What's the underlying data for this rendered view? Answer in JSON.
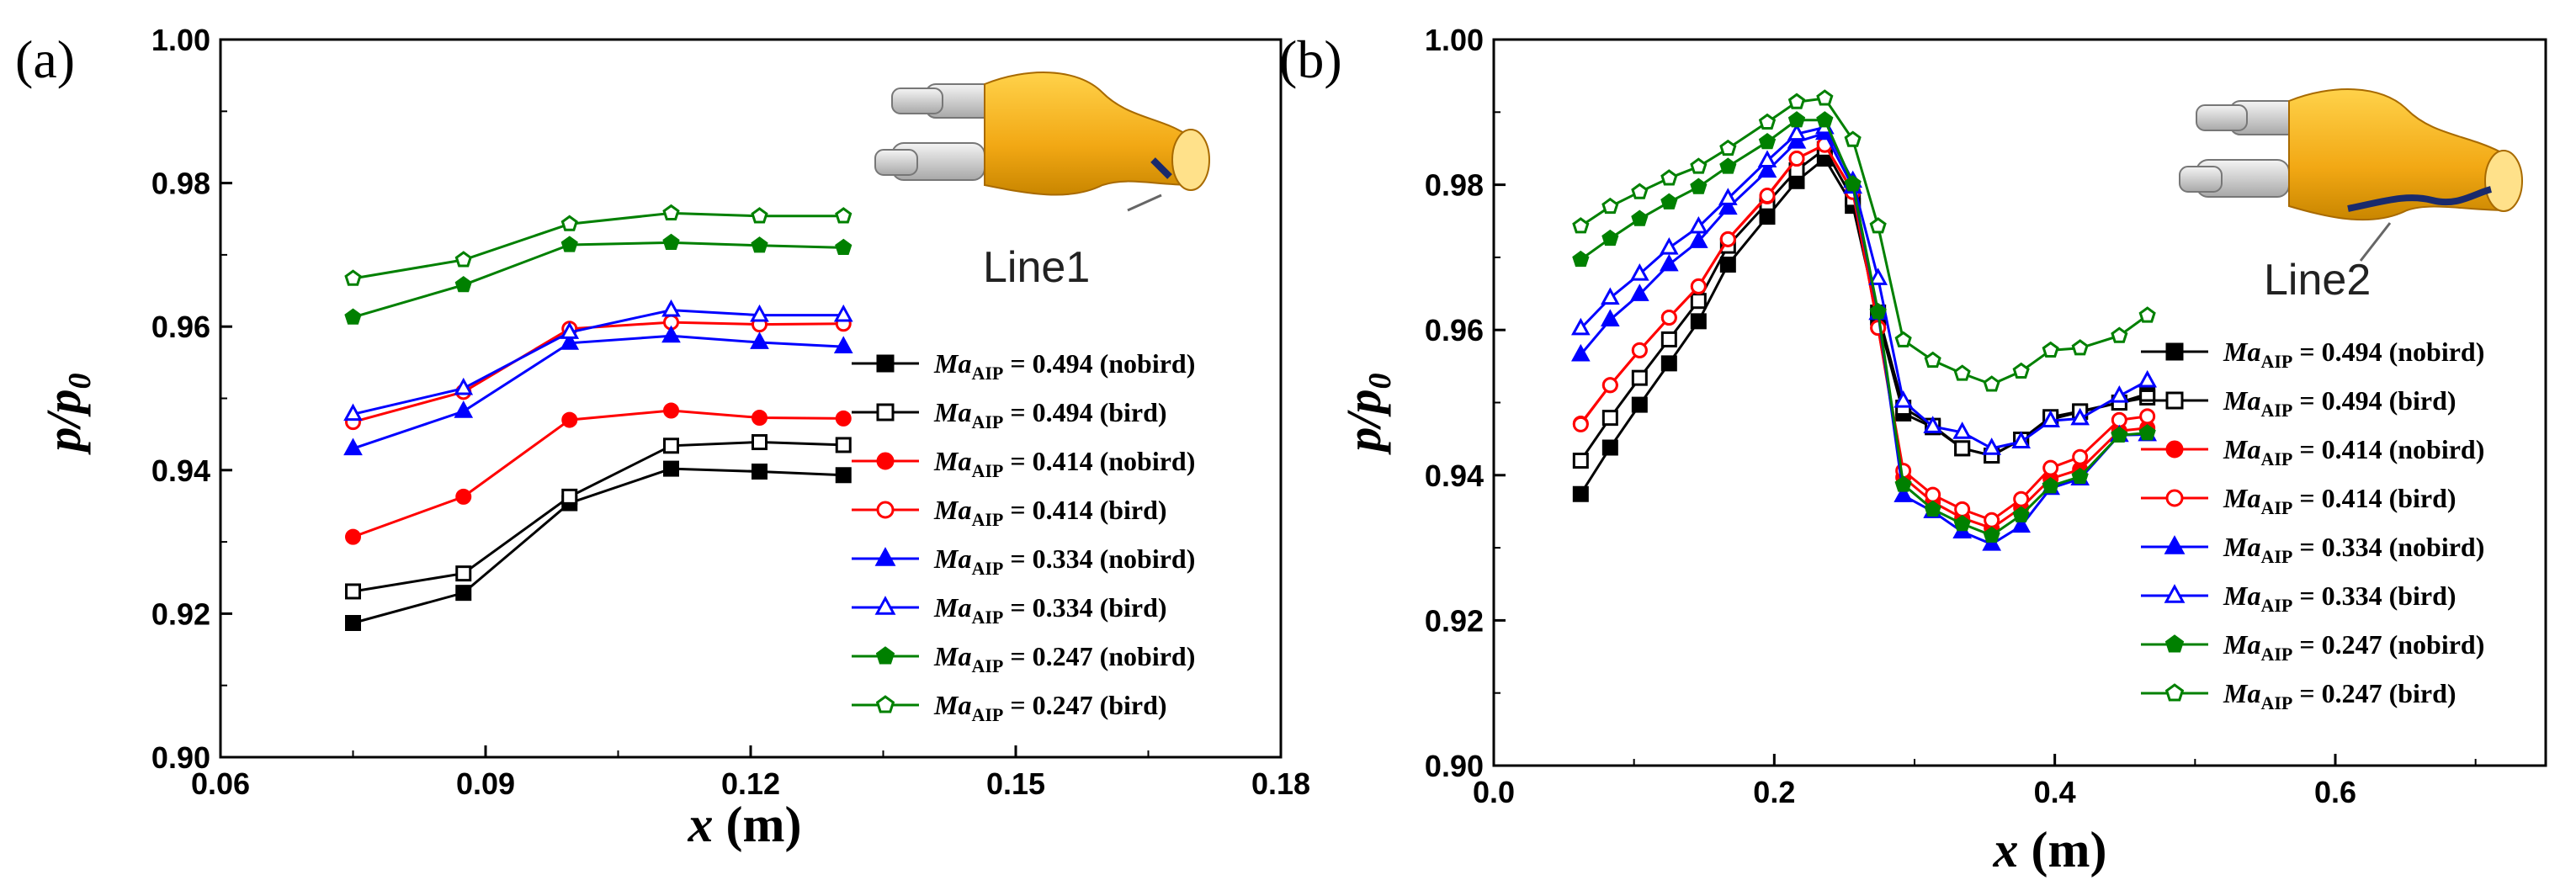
{
  "chart_data": [
    {
      "type": "line",
      "panel_label": "(a)",
      "xlabel": "x",
      "xunit": " (m)",
      "ylabel": "p/p",
      "ylabel_sub": "0",
      "xlim": [
        0.06,
        0.18
      ],
      "ylim": [
        0.9,
        1.0
      ],
      "xticks": [
        "0.06",
        "0.09",
        "0.12",
        "0.15",
        "0.18"
      ],
      "yticks": [
        "0.90",
        "0.92",
        "0.94",
        "0.96",
        "0.98",
        "1.00"
      ],
      "inset_label": "Line1",
      "legend_position": "right",
      "x": [
        0.075,
        0.0875,
        0.0995,
        0.111,
        0.121,
        0.1305
      ],
      "series": [
        {
          "name": "Ma_AIP = 0.494 (nobird)",
          "ma": "Ma",
          "sub": "AIP",
          "rest": " = 0.494 (nobird)",
          "color": "#000000",
          "marker": "square",
          "filled": true,
          "values": [
            0.9187,
            0.9229,
            0.9354,
            0.9402,
            0.9398,
            0.9393
          ]
        },
        {
          "name": "Ma_AIP = 0.494 (bird)",
          "ma": "Ma",
          "sub": "AIP",
          "rest": " = 0.494 (bird)",
          "color": "#000000",
          "marker": "square",
          "filled": false,
          "values": [
            0.9231,
            0.9256,
            0.9363,
            0.9434,
            0.9439,
            0.9435
          ]
        },
        {
          "name": "Ma_AIP = 0.414 (nobird)",
          "ma": "Ma",
          "sub": "AIP",
          "rest": " = 0.414 (nobird)",
          "color": "#ff0000",
          "marker": "circle",
          "filled": true,
          "values": [
            0.9307,
            0.9363,
            0.947,
            0.9483,
            0.9473,
            0.9472
          ]
        },
        {
          "name": "Ma_AIP = 0.414 (bird)",
          "ma": "Ma",
          "sub": "AIP",
          "rest": " = 0.414 (bird)",
          "color": "#ff0000",
          "marker": "circle",
          "filled": false,
          "values": [
            0.9467,
            0.9509,
            0.9597,
            0.9606,
            0.9603,
            0.9604
          ]
        },
        {
          "name": "Ma_AIP = 0.334 (nobird)",
          "ma": "Ma",
          "sub": "AIP",
          "rest": " = 0.334 (nobird)",
          "color": "#0000ff",
          "marker": "triangle",
          "filled": true,
          "values": [
            0.943,
            0.9482,
            0.9577,
            0.9587,
            0.9578,
            0.9572
          ]
        },
        {
          "name": "Ma_AIP = 0.334 (bird)",
          "ma": "Ma",
          "sub": "AIP",
          "rest": " = 0.334 (bird)",
          "color": "#0000ff",
          "marker": "triangle",
          "filled": false,
          "values": [
            0.9478,
            0.9514,
            0.9592,
            0.9623,
            0.9616,
            0.9616
          ]
        },
        {
          "name": "Ma_AIP = 0.247 (nobird)",
          "ma": "Ma",
          "sub": "AIP",
          "rest": " = 0.247 (nobird)",
          "color": "#008000",
          "marker": "pentagon",
          "filled": true,
          "values": [
            0.9613,
            0.9658,
            0.9714,
            0.9717,
            0.9713,
            0.971
          ]
        },
        {
          "name": "Ma_AIP = 0.247 (bird)",
          "ma": "Ma",
          "sub": "AIP",
          "rest": " = 0.247 (bird)",
          "color": "#008000",
          "marker": "pentagon",
          "filled": false,
          "values": [
            0.9667,
            0.9693,
            0.9743,
            0.9758,
            0.9754,
            0.9754
          ]
        }
      ]
    },
    {
      "type": "line",
      "panel_label": "(b)",
      "xlabel": "x",
      "xunit": " (m)",
      "ylabel": "p/p",
      "ylabel_sub": "0",
      "xlim": [
        0.0,
        0.75
      ],
      "ylim": [
        0.9,
        1.0
      ],
      "xticks": [
        "0.0",
        "0.2",
        "0.4",
        "0.6"
      ],
      "xtick_values": [
        0.0,
        0.2,
        0.4,
        0.6
      ],
      "yticks": [
        "0.90",
        "0.92",
        "0.94",
        "0.96",
        "0.98",
        "1.00"
      ],
      "inset_label": "Line2",
      "legend_position": "right",
      "x": [
        0.062,
        0.083,
        0.104,
        0.125,
        0.146,
        0.167,
        0.195,
        0.216,
        0.236,
        0.256,
        0.274,
        0.292,
        0.313,
        0.334,
        0.355,
        0.376,
        0.397,
        0.418,
        0.446,
        0.466
      ],
      "series": [
        {
          "name": "Ma_AIP = 0.494 (nobird)",
          "ma": "Ma",
          "sub": "AIP",
          "rest": " = 0.494 (nobird)",
          "color": "#000000",
          "marker": "square",
          "filled": true,
          "values": [
            0.9374,
            0.9438,
            0.9497,
            0.9554,
            0.9612,
            0.969,
            0.9756,
            0.9805,
            0.9836,
            0.9771,
            0.9617,
            0.9485,
            0.9466,
            0.9437,
            0.9427,
            0.9449,
            0.9477,
            0.9487,
            0.95,
            0.9512
          ]
        },
        {
          "name": "Ma_AIP = 0.494 (bird)",
          "ma": "Ma",
          "sub": "AIP",
          "rest": " = 0.494 (bird)",
          "color": "#000000",
          "marker": "square",
          "filled": false,
          "values": [
            0.942,
            0.9479,
            0.9534,
            0.9587,
            0.964,
            0.9716,
            0.9775,
            0.982,
            0.9849,
            0.978,
            0.9624,
            0.9493,
            0.9468,
            0.9437,
            0.9427,
            0.9449,
            0.948,
            0.9488,
            0.95,
            0.9507
          ]
        },
        {
          "name": "Ma_AIP = 0.414 (nobird)",
          "ma": "Ma",
          "sub": "AIP",
          "rest": " = 0.414 (nobird)",
          "color": "#ff0000",
          "marker": "circle",
          "filled": true,
          "values": [
            0.9471,
            0.9524,
            0.9572,
            0.9617,
            0.966,
            0.9725,
            0.9784,
            0.9836,
            0.9855,
            0.9791,
            0.9603,
            0.9397,
            0.9363,
            0.9341,
            0.9327,
            0.9355,
            0.9395,
            0.9408,
            0.9461,
            0.9465
          ]
        },
        {
          "name": "Ma_AIP = 0.414 (bird)",
          "ma": "Ma",
          "sub": "AIP",
          "rest": " = 0.414 (bird)",
          "color": "#ff0000",
          "marker": "circle",
          "filled": false,
          "values": [
            0.947,
            0.9524,
            0.9572,
            0.9617,
            0.966,
            0.9725,
            0.9785,
            0.9836,
            0.9855,
            0.979,
            0.9603,
            0.9406,
            0.9373,
            0.9353,
            0.9338,
            0.9367,
            0.941,
            0.9425,
            0.9476,
            0.9481
          ]
        },
        {
          "name": "Ma_AIP = 0.334 (nobird)",
          "ma": "Ma",
          "sub": "AIP",
          "rest": " = 0.334 (nobird)",
          "color": "#0000ff",
          "marker": "triangle",
          "filled": true,
          "values": [
            0.9566,
            0.9614,
            0.9649,
            0.969,
            0.9722,
            0.9768,
            0.9819,
            0.9859,
            0.9871,
            0.9797,
            0.9623,
            0.9372,
            0.935,
            0.9322,
            0.9305,
            0.933,
            0.9382,
            0.9395,
            0.9455,
            0.9456
          ]
        },
        {
          "name": "Ma_AIP = 0.334 (bird)",
          "ma": "Ma",
          "sub": "AIP",
          "rest": " = 0.334 (bird)",
          "color": "#0000ff",
          "marker": "triangle",
          "filled": false,
          "values": [
            0.9602,
            0.9644,
            0.9677,
            0.9713,
            0.9742,
            0.9781,
            0.9833,
            0.987,
            0.9879,
            0.9805,
            0.9671,
            0.9502,
            0.9467,
            0.9459,
            0.9437,
            0.9446,
            0.9475,
            0.9478,
            0.9509,
            0.953
          ]
        },
        {
          "name": "Ma_AIP = 0.247 (nobird)",
          "ma": "Ma",
          "sub": "AIP",
          "rest": " = 0.247 (nobird)",
          "color": "#008000",
          "marker": "pentagon",
          "filled": true,
          "values": [
            0.9697,
            0.9726,
            0.9753,
            0.9776,
            0.9797,
            0.9825,
            0.9859,
            0.9889,
            0.9889,
            0.9801,
            0.9625,
            0.9387,
            0.9353,
            0.9333,
            0.9317,
            0.9345,
            0.9385,
            0.9398,
            0.9455,
            0.9458
          ]
        },
        {
          "name": "Ma_AIP = 0.247 (bird)",
          "ma": "Ma",
          "sub": "AIP",
          "rest": " = 0.247 (bird)",
          "color": "#008000",
          "marker": "pentagon",
          "filled": false,
          "values": [
            0.9743,
            0.977,
            0.979,
            0.9809,
            0.9825,
            0.985,
            0.9886,
            0.9914,
            0.9919,
            0.9862,
            0.9743,
            0.9586,
            0.9558,
            0.954,
            0.9525,
            0.9543,
            0.9572,
            0.9575,
            0.9592,
            0.962
          ]
        }
      ]
    }
  ]
}
